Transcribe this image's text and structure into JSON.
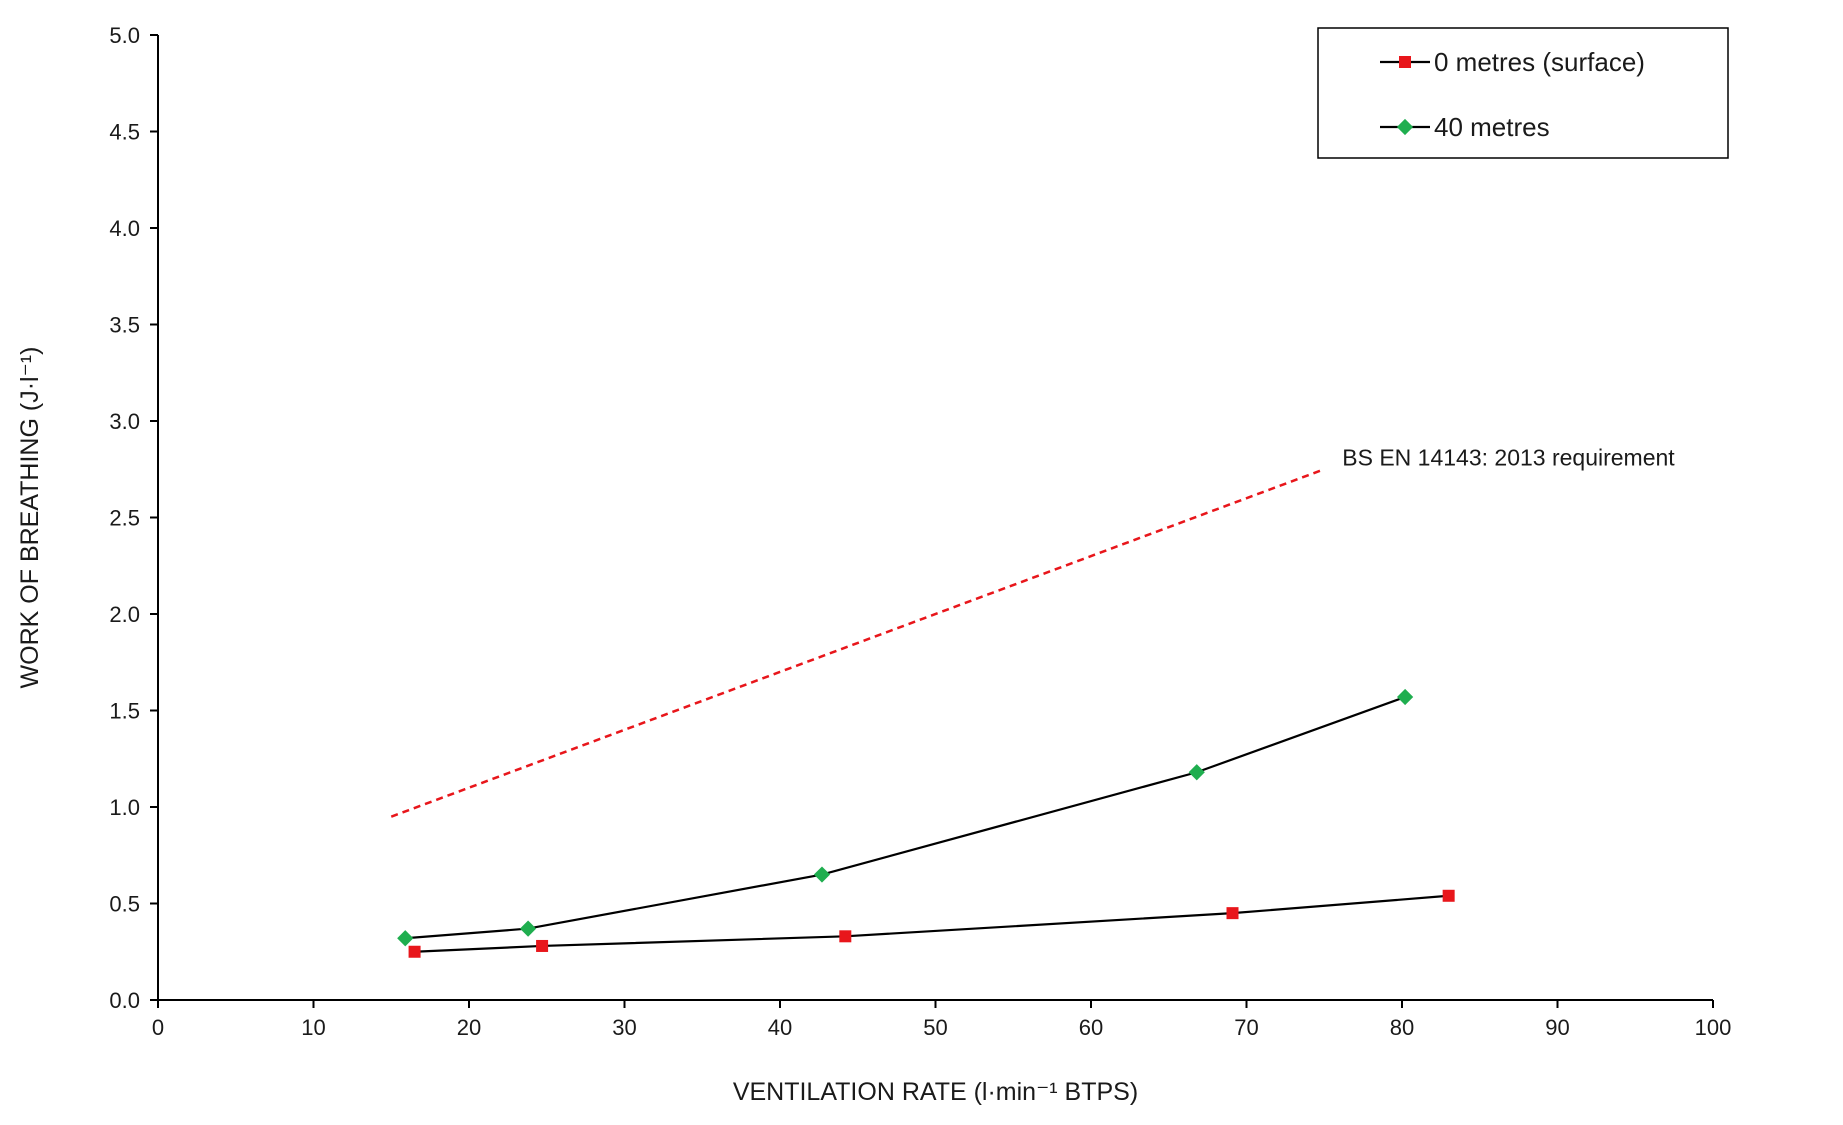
{
  "chart_data": {
    "type": "line",
    "xlabel": "VENTILATION RATE (l·min⁻¹  BTPS)",
    "ylabel": "WORK OF BREATHING (J·l⁻¹)",
    "xlim": [
      0,
      100
    ],
    "ylim": [
      0,
      5
    ],
    "xticks": [
      "0",
      "10",
      "20",
      "30",
      "40",
      "50",
      "60",
      "70",
      "80",
      "90",
      "100"
    ],
    "yticks": [
      "0.0",
      "0.5",
      "1.0",
      "1.5",
      "2.0",
      "2.5",
      "3.0",
      "3.5",
      "4.0",
      "4.5",
      "5.0"
    ],
    "grid": false,
    "legend_position": "top-right",
    "series": [
      {
        "name": "0 metres (surface)",
        "marker": "square",
        "color": "#e8161b",
        "x": [
          16.5,
          24.7,
          44.2,
          69.1,
          83.0
        ],
        "y": [
          0.25,
          0.28,
          0.33,
          0.45,
          0.54
        ]
      },
      {
        "name": "40 metres",
        "marker": "diamond",
        "color": "#1fae4f",
        "x": [
          15.9,
          23.8,
          42.7,
          66.8,
          80.2
        ],
        "y": [
          0.32,
          0.37,
          0.65,
          1.18,
          1.57
        ]
      }
    ],
    "reference_line": {
      "label": "BS EN 14143: 2013 requirement",
      "color": "#e8161b",
      "style": "dashed",
      "x": [
        15,
        75
      ],
      "y": [
        0.95,
        2.75
      ]
    }
  }
}
